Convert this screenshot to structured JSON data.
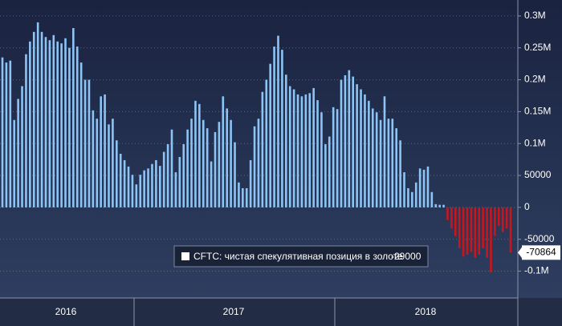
{
  "chart_data": {
    "type": "bar",
    "series": [
      {
        "name": "CFTC: чистая спекулятивная позиция в золоте",
        "color": "#8cc4f5",
        "negative_color": "#c8161d",
        "values": [
          235000,
          227000,
          230000,
          137000,
          170000,
          190000,
          240000,
          260000,
          275000,
          290000,
          275000,
          267000,
          262000,
          270000,
          260000,
          257000,
          265000,
          250000,
          281000,
          252000,
          227000,
          200000,
          200000,
          152000,
          139000,
          174000,
          177000,
          130000,
          139000,
          105000,
          84000,
          74000,
          64000,
          51000,
          36000,
          51000,
          58000,
          61000,
          68000,
          74000,
          65000,
          87000,
          99000,
          122000,
          55000,
          79000,
          99000,
          122000,
          139000,
          167000,
          162000,
          137000,
          124000,
          72000,
          118000,
          134000,
          174000,
          155000,
          137000,
          102000,
          39000,
          30000,
          30000,
          74000,
          127000,
          139000,
          181000,
          200000,
          225000,
          252000,
          269000,
          247000,
          208000,
          190000,
          185000,
          177000,
          174000,
          177000,
          179000,
          187000,
          168000,
          149000,
          99000,
          111000,
          157000,
          154000,
          200000,
          207000,
          215000,
          205000,
          193000,
          185000,
          177000,
          167000,
          155000,
          149000,
          137000,
          174000,
          139000,
          139000,
          124000,
          105000,
          55000,
          30000,
          24000,
          39000,
          61000,
          59000,
          64000,
          24000,
          5000,
          4000,
          4000,
          -20000,
          -33000,
          -45000,
          -64000,
          -77000,
          -74000,
          -70000,
          -79000,
          -74000,
          -64000,
          -79000,
          -102000,
          -45000,
          -29000,
          -39000,
          -33000,
          -70864
        ]
      }
    ],
    "x_labels": [
      "2016",
      "2017",
      "2018"
    ],
    "ylim": [
      -142000,
      325000
    ],
    "yticks": [
      {
        "value": 300000,
        "label": "0.3M"
      },
      {
        "value": 250000,
        "label": "0.25M"
      },
      {
        "value": 200000,
        "label": "0.2M"
      },
      {
        "value": 150000,
        "label": "0.15M"
      },
      {
        "value": 100000,
        "label": "0.1M"
      },
      50000,
      0,
      -50000,
      {
        "value": -100000,
        "label": "-0.1M"
      }
    ],
    "grid": true
  }
}
